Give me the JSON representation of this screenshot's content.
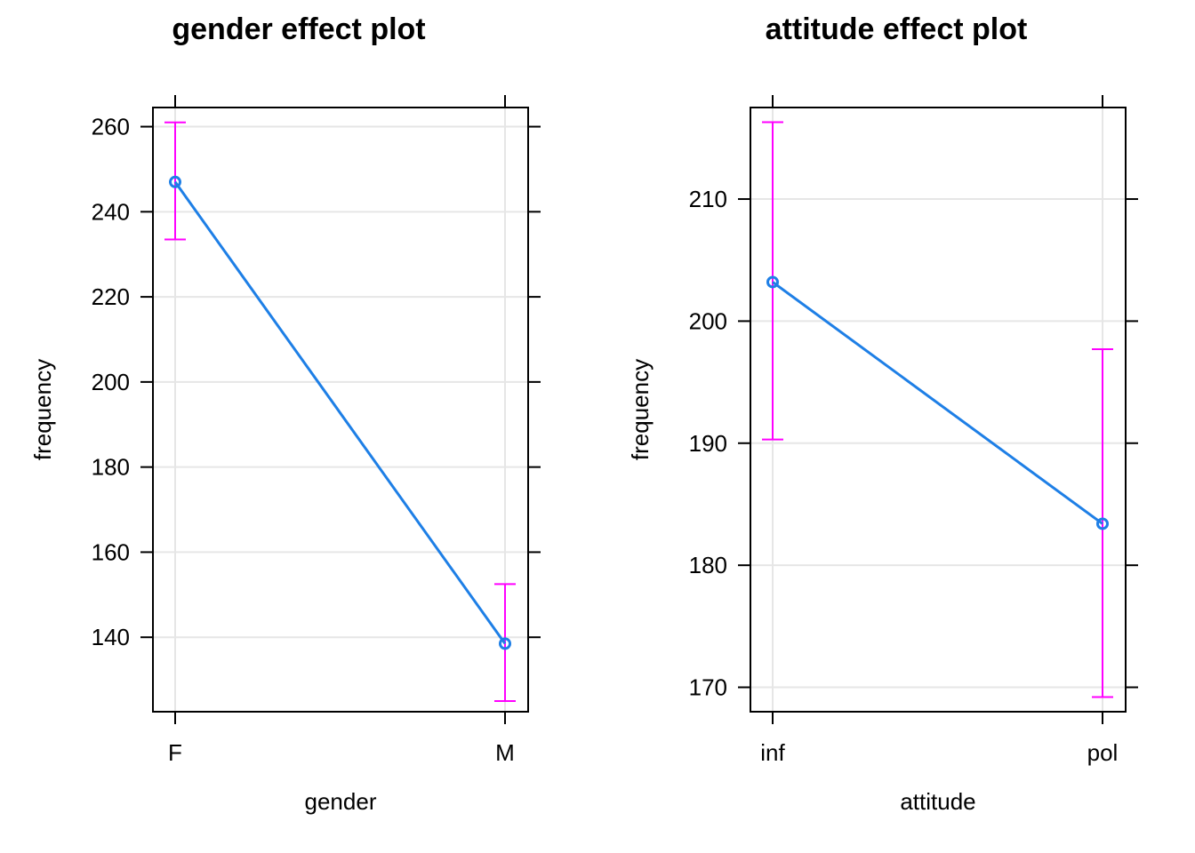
{
  "colors": {
    "line": "#1e7fe6",
    "ci": "#ff00ff",
    "grid": "#e6e6e6",
    "frame": "#000000"
  },
  "chart_data": [
    {
      "type": "line",
      "title": "gender effect plot",
      "xlabel": "gender",
      "ylabel": "frequency",
      "categories": [
        "F",
        "M"
      ],
      "values": [
        247,
        138.5
      ],
      "lower": [
        233.5,
        125
      ],
      "upper": [
        261,
        152.5
      ],
      "yticks": [
        140,
        160,
        180,
        200,
        220,
        240,
        260
      ],
      "ylim": [
        122.5,
        264.5
      ],
      "grid": true,
      "error_bars": true
    },
    {
      "type": "line",
      "title": "attitude effect plot",
      "xlabel": "attitude",
      "ylabel": "frequency",
      "categories": [
        "inf",
        "pol"
      ],
      "values": [
        203.2,
        183.4
      ],
      "lower": [
        190.3,
        169.2
      ],
      "upper": [
        216.3,
        197.7
      ],
      "yticks": [
        170,
        180,
        190,
        200,
        210
      ],
      "ylim": [
        168,
        217.5
      ],
      "grid": true,
      "error_bars": true
    }
  ]
}
